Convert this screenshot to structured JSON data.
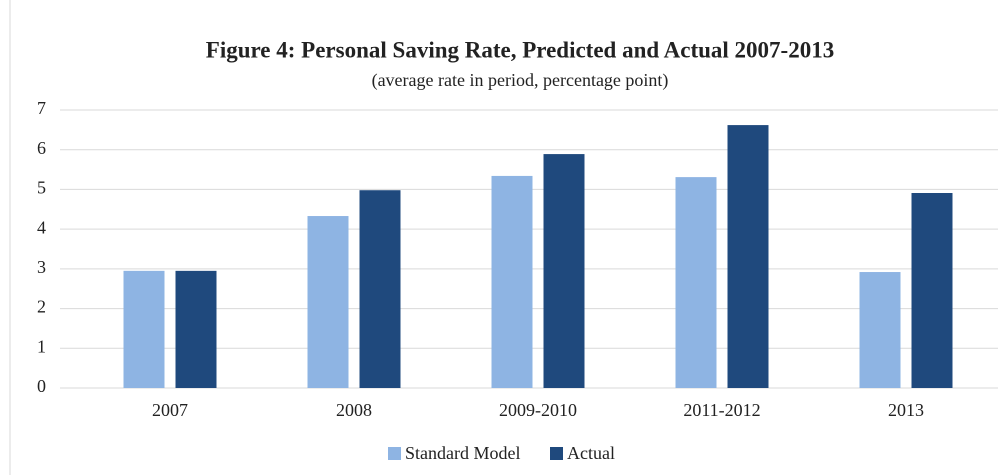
{
  "chart_data": {
    "type": "bar",
    "title": "Figure 4: Personal Saving Rate, Predicted and Actual 2007-2013",
    "subtitle": "(average rate in period, percentage point)",
    "categories": [
      "2007",
      "2008",
      "2009-2010",
      "2011-2012",
      "2013"
    ],
    "series": [
      {
        "name": "Standard Model",
        "color": "#8eb4e3",
        "values": [
          2.95,
          4.33,
          5.34,
          5.31,
          2.92
        ]
      },
      {
        "name": "Actual",
        "color": "#1f497d",
        "values": [
          2.95,
          4.98,
          5.89,
          6.62,
          4.91
        ]
      }
    ],
    "ylim": [
      0,
      7
    ],
    "yticks": [
      0,
      1,
      2,
      3,
      4,
      5,
      6,
      7
    ],
    "grid": true,
    "legend": "bottom"
  }
}
